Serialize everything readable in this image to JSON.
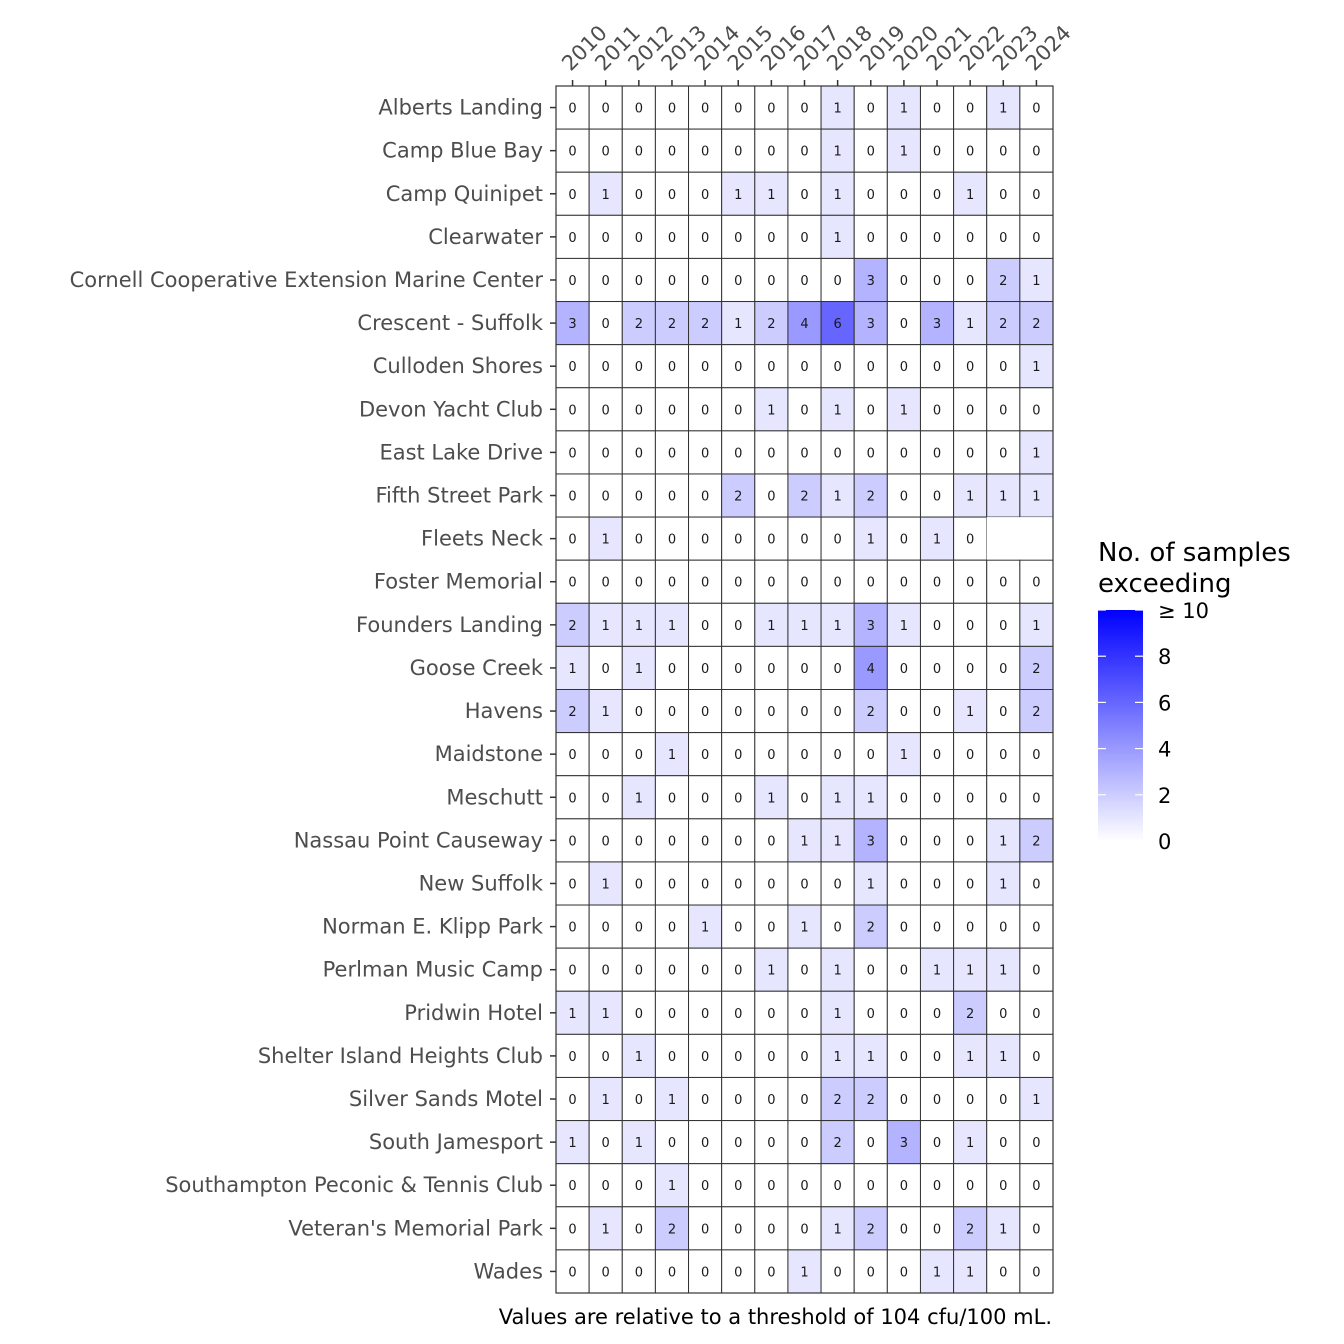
{
  "chart_data": {
    "type": "heatmap",
    "title": "",
    "caption": "Values are relative to a threshold of 104 cfu/100 mL.",
    "x": [
      "2010",
      "2011",
      "2012",
      "2013",
      "2014",
      "2015",
      "2016",
      "2017",
      "2018",
      "2019",
      "2020",
      "2021",
      "2022",
      "2023",
      "2024"
    ],
    "y": [
      "Alberts Landing",
      "Camp Blue Bay",
      "Camp Quinipet",
      "Clearwater",
      "Cornell Cooperative Extension Marine Center",
      "Crescent - Suffolk",
      "Culloden Shores",
      "Devon Yacht Club",
      "East Lake Drive",
      "Fifth Street Park",
      "Fleets Neck",
      "Foster Memorial",
      "Founders Landing",
      "Goose Creek",
      "Havens",
      "Maidstone",
      "Meschutt",
      "Nassau Point Causeway",
      "New Suffolk",
      "Norman E. Klipp Park",
      "Perlman Music Camp",
      "Pridwin Hotel",
      "Shelter Island Heights Club",
      "Silver Sands Motel",
      "South Jamesport",
      "Southampton Peconic & Tennis Club",
      "Veteran's Memorial Park",
      "Wades"
    ],
    "values": [
      [
        0,
        0,
        0,
        0,
        0,
        0,
        0,
        0,
        1,
        0,
        1,
        0,
        0,
        1,
        0
      ],
      [
        0,
        0,
        0,
        0,
        0,
        0,
        0,
        0,
        1,
        0,
        1,
        0,
        0,
        0,
        0
      ],
      [
        0,
        1,
        0,
        0,
        0,
        1,
        1,
        0,
        1,
        0,
        0,
        0,
        1,
        0,
        0
      ],
      [
        0,
        0,
        0,
        0,
        0,
        0,
        0,
        0,
        1,
        0,
        0,
        0,
        0,
        0,
        0
      ],
      [
        0,
        0,
        0,
        0,
        0,
        0,
        0,
        0,
        0,
        3,
        0,
        0,
        0,
        2,
        1
      ],
      [
        3,
        0,
        2,
        2,
        2,
        1,
        2,
        4,
        6,
        3,
        0,
        3,
        1,
        2,
        2
      ],
      [
        0,
        0,
        0,
        0,
        0,
        0,
        0,
        0,
        0,
        0,
        0,
        0,
        0,
        0,
        1
      ],
      [
        0,
        0,
        0,
        0,
        0,
        0,
        1,
        0,
        1,
        0,
        1,
        0,
        0,
        0,
        0
      ],
      [
        0,
        0,
        0,
        0,
        0,
        0,
        0,
        0,
        0,
        0,
        0,
        0,
        0,
        0,
        1
      ],
      [
        0,
        0,
        0,
        0,
        0,
        2,
        0,
        2,
        1,
        2,
        0,
        0,
        1,
        1,
        1
      ],
      [
        0,
        1,
        0,
        0,
        0,
        0,
        0,
        0,
        0,
        1,
        0,
        1,
        0,
        null,
        null
      ],
      [
        0,
        0,
        0,
        0,
        0,
        0,
        0,
        0,
        0,
        0,
        0,
        0,
        0,
        0,
        0
      ],
      [
        2,
        1,
        1,
        1,
        0,
        0,
        1,
        1,
        1,
        3,
        1,
        0,
        0,
        0,
        1
      ],
      [
        1,
        0,
        1,
        0,
        0,
        0,
        0,
        0,
        0,
        4,
        0,
        0,
        0,
        0,
        2
      ],
      [
        2,
        1,
        0,
        0,
        0,
        0,
        0,
        0,
        0,
        2,
        0,
        0,
        1,
        0,
        2
      ],
      [
        0,
        0,
        0,
        1,
        0,
        0,
        0,
        0,
        0,
        0,
        1,
        0,
        0,
        0,
        0
      ],
      [
        0,
        0,
        1,
        0,
        0,
        0,
        1,
        0,
        1,
        1,
        0,
        0,
        0,
        0,
        0
      ],
      [
        0,
        0,
        0,
        0,
        0,
        0,
        0,
        1,
        1,
        3,
        0,
        0,
        0,
        1,
        2
      ],
      [
        0,
        1,
        0,
        0,
        0,
        0,
        0,
        0,
        0,
        1,
        0,
        0,
        0,
        1,
        0
      ],
      [
        0,
        0,
        0,
        0,
        1,
        0,
        0,
        1,
        0,
        2,
        0,
        0,
        0,
        0,
        0
      ],
      [
        0,
        0,
        0,
        0,
        0,
        0,
        1,
        0,
        1,
        0,
        0,
        1,
        1,
        1,
        0
      ],
      [
        1,
        1,
        0,
        0,
        0,
        0,
        0,
        0,
        1,
        0,
        0,
        0,
        2,
        0,
        0
      ],
      [
        0,
        0,
        1,
        0,
        0,
        0,
        0,
        0,
        1,
        1,
        0,
        0,
        1,
        1,
        0
      ],
      [
        0,
        1,
        0,
        1,
        0,
        0,
        0,
        0,
        2,
        2,
        0,
        0,
        0,
        0,
        1
      ],
      [
        1,
        0,
        1,
        0,
        0,
        0,
        0,
        0,
        2,
        0,
        3,
        0,
        1,
        0,
        0
      ],
      [
        0,
        0,
        0,
        1,
        0,
        0,
        0,
        0,
        0,
        0,
        0,
        0,
        0,
        0,
        0
      ],
      [
        0,
        1,
        0,
        2,
        0,
        0,
        0,
        0,
        1,
        2,
        0,
        0,
        2,
        1,
        0
      ],
      [
        0,
        0,
        0,
        0,
        0,
        0,
        0,
        1,
        0,
        0,
        0,
        1,
        1,
        0,
        0
      ]
    ],
    "legend": {
      "title_lines": [
        "No. of samples",
        "exceeding"
      ],
      "ticks": [
        0,
        2,
        4,
        6,
        8,
        10
      ],
      "tick_labels": [
        "0",
        "2",
        "4",
        "6",
        "8",
        "≥ 10"
      ],
      "range": [
        0,
        10
      ],
      "position": "right"
    },
    "colors": {
      "low": "#ffffff",
      "high": "#0000ff",
      "border": "#333333",
      "axis": "#333333"
    }
  }
}
